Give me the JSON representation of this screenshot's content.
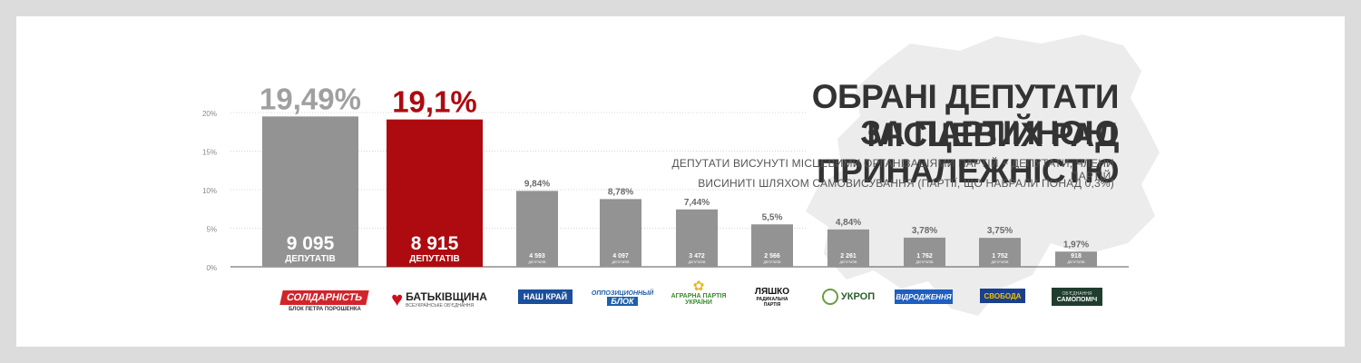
{
  "title": [
    "ОБРАНІ ДЕПУТАТИ МІСЦЕВИХ РАД",
    "ЗА ПАРТІЙНОЮ ПРИНАЛЕЖНІСТЮ"
  ],
  "subtitle": [
    "ДЕПУТАТИ ВИСУНУТІ МІСЦЕВИМИ ОРГАНІЗАЦІЯМИ ПАРТІЙ + ДЕПУТАТИ, ЧЛЕНИ ПАРТІЙ,",
    "ВИСИНИТІ ШЛЯХОМ САМОВИСУВАННЯ (ПАРТІЇ, ЩО НАБРАЛИ ПОНАД 0,3%)"
  ],
  "colors": {
    "gray": "#939393",
    "red": "#ad0b10",
    "big_gray_label": "#a0a0a0",
    "small_label": "#6a6a6a"
  },
  "chart_data": {
    "type": "bar",
    "y_ticks": [
      "0%",
      "5%",
      "10%",
      "15%",
      "20%"
    ],
    "ylim": [
      0,
      20
    ],
    "grid": "dotted",
    "bars": [
      {
        "pct": 19.49,
        "pct_label": "19,49%",
        "count": "9 095",
        "unit": "ДЕПУТАТІВ",
        "big": true,
        "color": "#939393",
        "label_color": "#a0a0a0"
      },
      {
        "pct": 19.1,
        "pct_label": "19,1%",
        "count": "8 915",
        "unit": "ДЕПУТАТІВ",
        "big": true,
        "color": "#ad0b10",
        "label_color": "#ad0b10"
      },
      {
        "pct": 9.84,
        "pct_label": "9,84%",
        "count": "4 593",
        "unit": "ДЕПУТАТІВ",
        "big": false,
        "color": "#939393",
        "label_color": "#6a6a6a"
      },
      {
        "pct": 8.78,
        "pct_label": "8,78%",
        "count": "4 097",
        "unit": "ДЕПУТАТІВ",
        "big": false,
        "color": "#939393",
        "label_color": "#6a6a6a"
      },
      {
        "pct": 7.44,
        "pct_label": "7,44%",
        "count": "3 472",
        "unit": "ДЕПУТАТІВ",
        "big": false,
        "color": "#939393",
        "label_color": "#6a6a6a"
      },
      {
        "pct": 5.5,
        "pct_label": "5,5%",
        "count": "2 566",
        "unit": "ДЕПУТАТІВ",
        "big": false,
        "color": "#939393",
        "label_color": "#6a6a6a"
      },
      {
        "pct": 4.84,
        "pct_label": "4,84%",
        "count": "2 261",
        "unit": "ДЕПУТАТІВ",
        "big": false,
        "color": "#939393",
        "label_color": "#6a6a6a"
      },
      {
        "pct": 3.78,
        "pct_label": "3,78%",
        "count": "1 762",
        "unit": "ДЕПУТАТІВ",
        "big": false,
        "color": "#939393",
        "label_color": "#6a6a6a"
      },
      {
        "pct": 3.75,
        "pct_label": "3,75%",
        "count": "1 752",
        "unit": "ДЕПУТАТІВ",
        "big": false,
        "color": "#939393",
        "label_color": "#6a6a6a"
      },
      {
        "pct": 1.97,
        "pct_label": "1,97%",
        "count": "918",
        "unit": "ДЕПУТАТІВ",
        "big": false,
        "color": "#939393",
        "label_color": "#6a6a6a"
      }
    ]
  },
  "logos": [
    {
      "name": "СОЛІДАРНІСТЬ",
      "sub": "БЛОК ПЕТРА ПОРОШЕНКА",
      "color": "#d1242b"
    },
    {
      "name": "БАТЬКІВЩИНА",
      "sub": "ВСЕУКРАЇНСЬКЕ ОБ'ЄДНАННЯ",
      "color": "#d10f1c"
    },
    {
      "name": "НАШ КРАЙ",
      "sub": "",
      "color": "#1b4f9c"
    },
    {
      "name": "ОППОЗИЦИОННЫЙ",
      "sub": "БЛОК",
      "color": "#1d5fa8"
    },
    {
      "name": "АГРАРНА ПАРТІЯ",
      "sub": "УКРАЇНИ",
      "color": "#3a8a2e"
    },
    {
      "name": "ЛЯШКО",
      "sub": "РАДИКАЛЬНА ПАРТІЯ",
      "color": "#111111"
    },
    {
      "name": "УКРОП",
      "sub": "",
      "color": "#2b5e2b"
    },
    {
      "name": "ВІДРОДЖЕННЯ",
      "sub": "",
      "color": "#1e5fbf"
    },
    {
      "name": "СВОБОДА",
      "sub": "",
      "color": "#1a3f8c"
    },
    {
      "name": "САМОПОМІЧ",
      "sub": "ОБ'ЄДНАННЯ",
      "color": "#1f3d2e"
    }
  ]
}
